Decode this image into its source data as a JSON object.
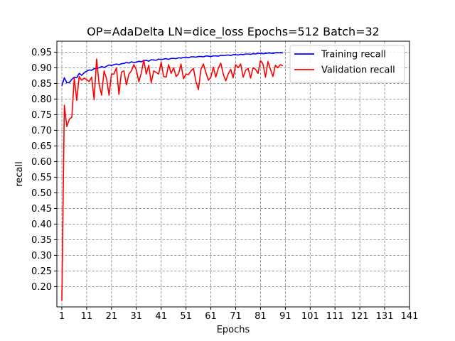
{
  "chart_data": {
    "type": "line",
    "title": "OP=AdaDelta LN=dice_loss Epochs=512 Batch=32",
    "xlabel": "Epochs",
    "ylabel": "recall",
    "xlim": [
      -1,
      141
    ],
    "ylim": [
      0.135,
      0.985
    ],
    "x_ticks": [
      1,
      11,
      21,
      31,
      41,
      51,
      61,
      71,
      81,
      91,
      101,
      111,
      121,
      131,
      141
    ],
    "y_ticks": [
      0.2,
      0.25,
      0.3,
      0.35,
      0.4,
      0.45,
      0.5,
      0.55,
      0.6,
      0.65,
      0.7,
      0.75,
      0.8,
      0.85,
      0.9,
      0.95
    ],
    "grid": true,
    "grid_style": "dashed",
    "legend_position": "top-right",
    "series": [
      {
        "name": "Training recall",
        "color": "#0000ff",
        "x": [
          1,
          2,
          3,
          4,
          5,
          6,
          7,
          8,
          9,
          10,
          11,
          12,
          13,
          14,
          15,
          16,
          17,
          18,
          19,
          20,
          21,
          22,
          23,
          24,
          25,
          26,
          27,
          28,
          29,
          30,
          31,
          32,
          33,
          34,
          35,
          36,
          37,
          38,
          39,
          40,
          41,
          42,
          43,
          44,
          45,
          46,
          47,
          48,
          49,
          50,
          51,
          52,
          53,
          54,
          55,
          56,
          57,
          58,
          59,
          60,
          61,
          62,
          63,
          64,
          65,
          66,
          67,
          68,
          69,
          70,
          71,
          72,
          73,
          74,
          75,
          76,
          77,
          78,
          79,
          80,
          81,
          82,
          83,
          84,
          85,
          86,
          87,
          88,
          89,
          90
        ],
        "values": [
          0.842,
          0.868,
          0.852,
          0.853,
          0.863,
          0.87,
          0.868,
          0.882,
          0.876,
          0.884,
          0.889,
          0.893,
          0.892,
          0.897,
          0.898,
          0.9,
          0.904,
          0.901,
          0.905,
          0.909,
          0.907,
          0.91,
          0.912,
          0.91,
          0.913,
          0.914,
          0.917,
          0.915,
          0.919,
          0.917,
          0.918,
          0.921,
          0.919,
          0.923,
          0.924,
          0.921,
          0.926,
          0.925,
          0.924,
          0.928,
          0.926,
          0.928,
          0.929,
          0.927,
          0.93,
          0.93,
          0.929,
          0.932,
          0.931,
          0.933,
          0.934,
          0.932,
          0.935,
          0.935,
          0.934,
          0.936,
          0.936,
          0.935,
          0.938,
          0.937,
          0.936,
          0.938,
          0.938,
          0.937,
          0.94,
          0.939,
          0.94,
          0.941,
          0.939,
          0.942,
          0.942,
          0.941,
          0.943,
          0.942,
          0.944,
          0.944,
          0.943,
          0.945,
          0.944,
          0.946,
          0.946,
          0.945,
          0.946,
          0.947,
          0.947,
          0.946,
          0.948,
          0.948,
          0.948,
          0.948
        ]
      },
      {
        "name": "Validation recall",
        "color": "#ff0000",
        "x": [
          1,
          2,
          3,
          4,
          5,
          6,
          7,
          8,
          9,
          10,
          11,
          12,
          13,
          14,
          15,
          16,
          17,
          18,
          19,
          20,
          21,
          22,
          23,
          24,
          25,
          26,
          27,
          28,
          29,
          30,
          31,
          32,
          33,
          34,
          35,
          36,
          37,
          38,
          39,
          40,
          41,
          42,
          43,
          44,
          45,
          46,
          47,
          48,
          49,
          50,
          51,
          52,
          53,
          54,
          55,
          56,
          57,
          58,
          59,
          60,
          61,
          62,
          63,
          64,
          65,
          66,
          67,
          68,
          69,
          70,
          71,
          72,
          73,
          74,
          75,
          76,
          77,
          78,
          79,
          80,
          81,
          82,
          83,
          84,
          85,
          86,
          87,
          88,
          89,
          90
        ],
        "values": [
          0.155,
          0.78,
          0.712,
          0.735,
          0.742,
          0.868,
          0.796,
          0.872,
          0.86,
          0.867,
          0.862,
          0.856,
          0.87,
          0.798,
          0.928,
          0.848,
          0.812,
          0.89,
          0.865,
          0.812,
          0.88,
          0.88,
          0.9,
          0.815,
          0.886,
          0.89,
          0.845,
          0.88,
          0.89,
          0.91,
          0.893,
          0.855,
          0.884,
          0.925,
          0.88,
          0.908,
          0.852,
          0.89,
          0.885,
          0.88,
          0.918,
          0.872,
          0.87,
          0.91,
          0.882,
          0.9,
          0.872,
          0.881,
          0.912,
          0.865,
          0.88,
          0.878,
          0.89,
          0.898,
          0.856,
          0.83,
          0.895,
          0.912,
          0.885,
          0.86,
          0.87,
          0.902,
          0.87,
          0.898,
          0.915,
          0.88,
          0.858,
          0.88,
          0.895,
          0.868,
          0.91,
          0.9,
          0.912,
          0.87,
          0.892,
          0.898,
          0.867,
          0.9,
          0.895,
          0.882,
          0.923,
          0.912,
          0.87,
          0.92,
          0.895,
          0.872,
          0.908,
          0.9,
          0.91,
          0.906
        ]
      }
    ]
  }
}
